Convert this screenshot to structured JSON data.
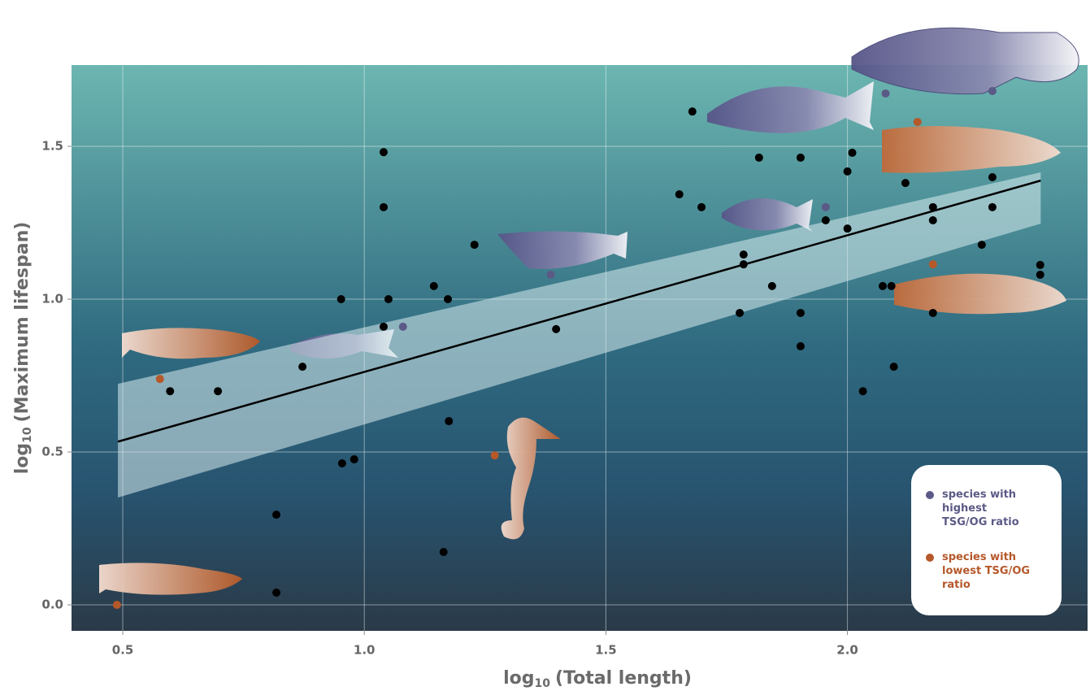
{
  "chart_data": {
    "type": "scatter",
    "x_label": [
      "log",
      "10",
      "(Total length)"
    ],
    "y_label": [
      "log",
      "10",
      "(Maximum lifespan)"
    ],
    "xlim": [
      0.394,
      2.497
    ],
    "ylim": [
      -0.085,
      1.766
    ],
    "xticks": [
      0.5,
      {
        "value": 1,
        "label": "1.0"
      },
      1.5,
      {
        "value": 2,
        "label": "2.0"
      }
    ],
    "yticks": [
      {
        "value": 0,
        "label": "0.0"
      },
      0.5,
      {
        "value": 1,
        "label": "1.0"
      },
      1.5
    ],
    "grid": true,
    "series": [
      {
        "color": "#000000",
        "x": [
          0.598,
          0.697,
          0.818,
          0.818,
          0.872,
          0.952,
          0.954,
          0.979,
          1.04,
          1.04,
          1.04,
          1.05,
          1.144,
          1.173,
          1.175,
          1.164,
          1.228,
          1.397,
          1.652,
          1.679,
          1.698,
          1.777,
          1.785,
          1.785,
          1.817,
          1.844,
          1.903,
          1.903,
          1.903,
          1.955,
          2.0,
          2.01,
          2.0,
          2.032,
          2.073,
          2.091,
          2.096,
          2.12,
          2.177,
          2.177,
          2.177,
          2.278,
          2.3,
          2.3,
          2.399,
          2.399
        ],
        "values": [
          0.699,
          0.699,
          0.04,
          0.295,
          0.779,
          1.0,
          0.463,
          0.476,
          1.481,
          1.301,
          0.91,
          1.0,
          1.043,
          1.0,
          0.601,
          0.173,
          1.178,
          0.902,
          1.343,
          1.614,
          1.301,
          0.955,
          1.146,
          1.114,
          1.463,
          1.043,
          1.463,
          0.955,
          0.846,
          1.258,
          1.418,
          1.479,
          1.231,
          0.699,
          1.043,
          1.043,
          0.779,
          1.38,
          1.301,
          1.258,
          0.955,
          1.178,
          1.399,
          1.301,
          1.112,
          1.08
        ]
      },
      {
        "name": "species with highest TSG/OG ratio",
        "color": "#5b5a86",
        "x": [
          1.08,
          1.386,
          1.955,
          2.079,
          2.3
        ],
        "values": [
          0.91,
          1.08,
          1.301,
          1.673,
          1.681
        ]
      },
      {
        "name": "species with lowest TSG/OG ratio",
        "color": "#b5582a",
        "x": [
          0.488,
          0.577,
          1.27,
          2.145,
          2.177
        ],
        "values": [
          0.0,
          0.739,
          0.489,
          1.58,
          1.114
        ]
      }
    ],
    "fit": {
      "color": "#000000",
      "x": [
        0.49,
        2.4
      ],
      "values": [
        0.534,
        1.388
      ]
    },
    "band": {
      "color": "#d8ecee",
      "x": [
        0.49,
        2.4
      ],
      "upper": [
        0.723,
        1.415
      ],
      "lower": [
        0.351,
        1.247
      ]
    }
  }
}
